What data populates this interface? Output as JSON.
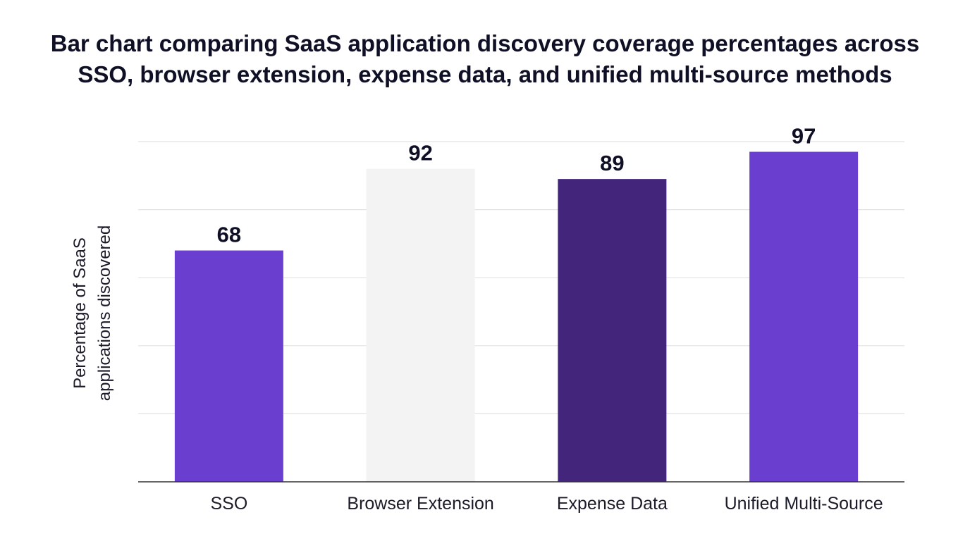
{
  "chart_data": {
    "type": "bar",
    "title_lines": [
      "Bar chart comparing SaaS application discovery coverage percentages across",
      "SSO, browser extension, expense data, and unified multi-source methods"
    ],
    "xlabel": "",
    "ylabel_lines": [
      "Percentage of SaaS",
      "applications discovered"
    ],
    "categories": [
      "SSO",
      "Browser Extension",
      "Expense Data",
      "Unified Multi-Source"
    ],
    "values": [
      68,
      92,
      89,
      97
    ],
    "data_labels": [
      "68",
      "92",
      "89",
      "97"
    ],
    "bar_colors": [
      "#6a3fd0",
      "#f3f3f3",
      "#43267b",
      "#6a3fd0"
    ],
    "ylim": [
      0,
      100
    ],
    "y_ticks": [
      0,
      20,
      40,
      60,
      80,
      100
    ],
    "y_tick_labels_shown": false,
    "grid": true,
    "legend": "none"
  }
}
